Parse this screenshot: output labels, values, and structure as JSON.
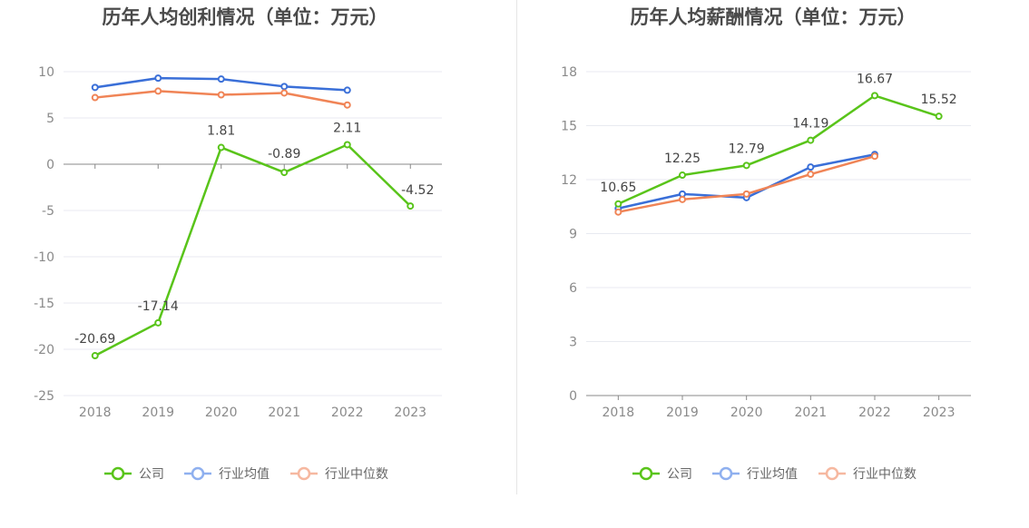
{
  "colors": {
    "company": "#59c41a",
    "industry_avg": "#3a6fd8",
    "industry_median": "#f08456",
    "legend_avg": "#8fb0ef",
    "legend_median": "#f6b8a0",
    "grid": "#e8eaf0",
    "axis": "#888888"
  },
  "chart_data": [
    {
      "type": "line",
      "title": "历年人均创利情况（单位：万元）",
      "categories": [
        "2018",
        "2019",
        "2020",
        "2021",
        "2022",
        "2023"
      ],
      "yticks": [
        10,
        5,
        0,
        -5,
        -10,
        -15,
        -20,
        -25
      ],
      "ylim": [
        -25,
        10
      ],
      "grid": true,
      "legend_position": "bottom",
      "series": [
        {
          "name": "公司",
          "values": [
            -20.69,
            -17.14,
            1.81,
            -0.89,
            2.11,
            -4.52
          ],
          "labels": [
            "-20.69",
            "-17.14",
            "1.81",
            "-0.89",
            "2.11",
            "-4.52"
          ]
        },
        {
          "name": "行业均值",
          "values": [
            8.3,
            9.3,
            9.2,
            8.4,
            8.0,
            null
          ]
        },
        {
          "name": "行业中位数",
          "values": [
            7.2,
            7.9,
            7.5,
            7.7,
            6.4,
            null
          ]
        }
      ]
    },
    {
      "type": "line",
      "title": "历年人均薪酬情况（单位：万元）",
      "categories": [
        "2018",
        "2019",
        "2020",
        "2021",
        "2022",
        "2023"
      ],
      "yticks": [
        18,
        15,
        12,
        9,
        6,
        3,
        0
      ],
      "ylim": [
        0,
        18
      ],
      "grid": true,
      "legend_position": "bottom",
      "series": [
        {
          "name": "公司",
          "values": [
            10.65,
            12.25,
            12.79,
            14.19,
            16.67,
            15.52
          ],
          "labels": [
            "10.65",
            "12.25",
            "12.79",
            "14.19",
            "16.67",
            "15.52"
          ]
        },
        {
          "name": "行业均值",
          "values": [
            10.4,
            11.2,
            11.0,
            12.7,
            13.4,
            null
          ]
        },
        {
          "name": "行业中位数",
          "values": [
            10.2,
            10.9,
            11.2,
            12.3,
            13.3,
            null
          ]
        }
      ]
    }
  ]
}
